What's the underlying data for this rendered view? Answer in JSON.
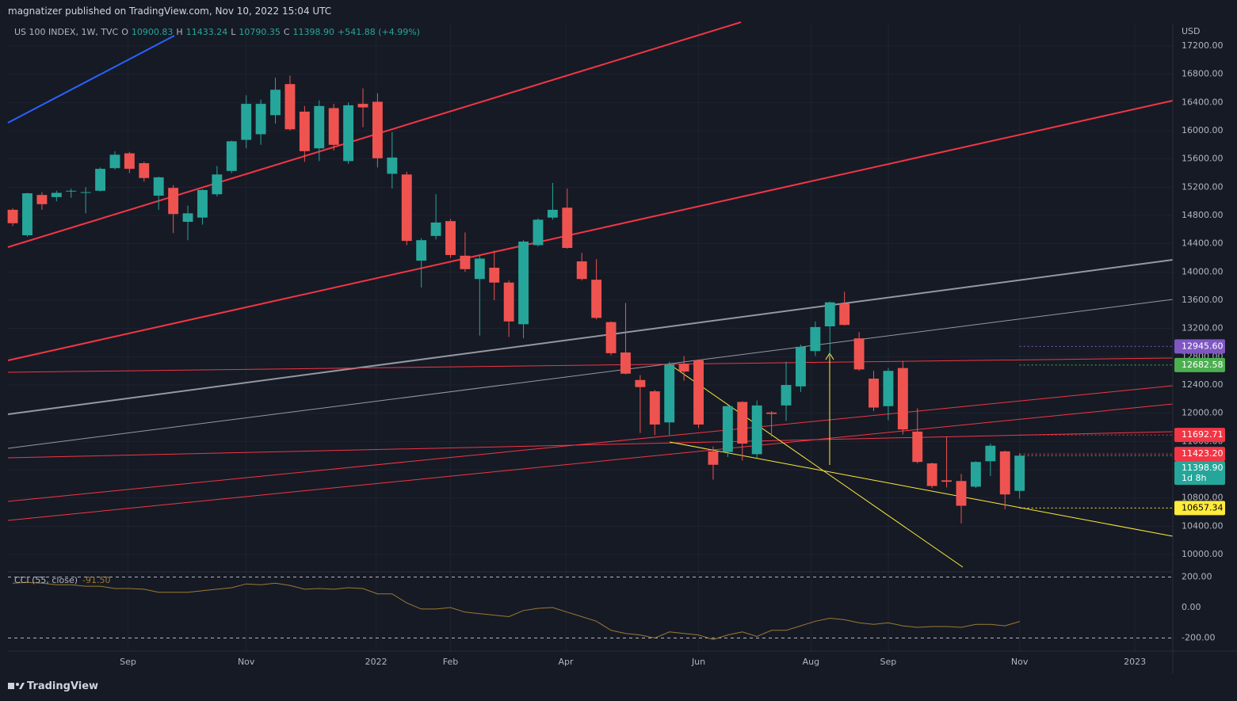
{
  "header": {
    "publisher": "magnatizer published on TradingView.com, Nov 10, 2022 15:04 UTC"
  },
  "footer": {
    "brand": "TradingView"
  },
  "chart_data": [
    {
      "type": "candlestick",
      "title": "US 100 INDEX, 1W, TVC",
      "currency": "USD",
      "legend_items": [
        {
          "label": "O",
          "value": "10900.83"
        },
        {
          "label": "H",
          "value": "11433.24"
        },
        {
          "label": "L",
          "value": "10790.35"
        },
        {
          "label": "C",
          "value": "11398.90"
        }
      ],
      "change": "+541.88 (+4.99%)",
      "up_color": "#26a69a",
      "down_color": "#ef5350",
      "open": [
        14880,
        14520,
        15090,
        15060,
        15140,
        15120,
        15150,
        15470,
        15680,
        15540,
        15080,
        15190,
        14710,
        14770,
        15100,
        15430,
        15870,
        15950,
        16220,
        16660,
        16270,
        15750,
        16320,
        15570,
        16380,
        16410,
        15390,
        15380,
        14160,
        14510,
        14720,
        14230,
        13900,
        14060,
        13850,
        13260,
        14380,
        14770,
        14910,
        14150,
        13890,
        13290,
        12860,
        12470,
        12310,
        11870,
        12700,
        12750,
        11460,
        11450,
        12160,
        11420,
        12010,
        12110,
        12380,
        12880,
        13230,
        13550,
        13060,
        12490,
        12100,
        12640,
        11740,
        11290,
        11050,
        11040,
        10960,
        11320,
        11460,
        10900.83
      ],
      "high": [
        14900,
        15120,
        15130,
        15150,
        15180,
        15200,
        15480,
        15710,
        15700,
        15560,
        15350,
        15230,
        14940,
        15170,
        15500,
        15860,
        16500,
        16440,
        16750,
        16780,
        16350,
        16430,
        16380,
        16400,
        16600,
        16530,
        15980,
        15420,
        14480,
        15100,
        14750,
        14560,
        14230,
        14300,
        13880,
        14450,
        14760,
        15260,
        15180,
        14270,
        14180,
        13300,
        13560,
        12540,
        12330,
        12730,
        12810,
        12760,
        11530,
        12110,
        12170,
        12180,
        12030,
        12730,
        12970,
        13300,
        13580,
        13720,
        13150,
        12600,
        12640,
        12740,
        12070,
        11300,
        11670,
        11140,
        11320,
        11570,
        11470,
        11433.24
      ],
      "low": [
        14650,
        14500,
        14880,
        15000,
        15050,
        14830,
        15140,
        15450,
        15400,
        15280,
        14880,
        14550,
        14450,
        14670,
        15070,
        15400,
        15750,
        15800,
        16100,
        16000,
        15560,
        15570,
        15720,
        15530,
        16050,
        15480,
        15180,
        14380,
        13780,
        14460,
        14200,
        14000,
        13100,
        13600,
        13080,
        13060,
        14360,
        14740,
        14330,
        13880,
        13330,
        12820,
        12550,
        11720,
        11690,
        11690,
        12460,
        11790,
        11060,
        11380,
        11330,
        11370,
        11670,
        11890,
        12300,
        12810,
        12810,
        13240,
        12600,
        12030,
        11900,
        11700,
        11290,
        10940,
        10950,
        10440,
        10940,
        11110,
        10640,
        10790.35
      ],
      "close": [
        14690,
        15114,
        14960,
        15120,
        15150,
        15130,
        15460,
        15660,
        15460,
        15330,
        15340,
        14820,
        14830,
        15160,
        15380,
        15850,
        16380,
        16380,
        16580,
        16020,
        15710,
        16350,
        15800,
        16360,
        16330,
        15610,
        15620,
        14440,
        14450,
        14700,
        14240,
        14040,
        14190,
        13850,
        13300,
        14430,
        14740,
        14880,
        14340,
        13900,
        13350,
        12850,
        12560,
        12370,
        11840,
        12690,
        12590,
        11840,
        11270,
        12100,
        11570,
        12110,
        11990,
        12400,
        12940,
        13220,
        13570,
        13250,
        12620,
        12080,
        12600,
        11770,
        11310,
        10970,
        11030,
        10690,
        11310,
        11540,
        10850,
        11398.9
      ],
      "xlim": [
        -0.33,
        79.5
      ],
      "xticks": [
        {
          "value": 7.9,
          "label": "Sep"
        },
        {
          "value": 16,
          "label": "Nov"
        },
        {
          "value": 24.9,
          "label": "2022"
        },
        {
          "value": 30,
          "label": "Feb"
        },
        {
          "value": 37.9,
          "label": "Apr"
        },
        {
          "value": 47,
          "label": "Jun"
        },
        {
          "value": 54.7,
          "label": "Aug"
        },
        {
          "value": 60,
          "label": "Sep"
        },
        {
          "value": 69,
          "label": "Nov"
        },
        {
          "value": 76.9,
          "label": "2023"
        }
      ],
      "ylim": [
        9776,
        17514
      ],
      "yticks": [
        {
          "value": 10000,
          "label": "10000.00"
        },
        {
          "value": 10400,
          "label": "10400.00"
        },
        {
          "value": 10800,
          "label": "10800.00"
        },
        {
          "value": 11200,
          "label": "11200.00"
        },
        {
          "value": 11600,
          "label": "11600.00"
        },
        {
          "value": 12000,
          "label": "12000.00"
        },
        {
          "value": 12400,
          "label": "12400.00"
        },
        {
          "value": 12800,
          "label": "12800.00"
        },
        {
          "value": 13200,
          "label": "13200.00"
        },
        {
          "value": 13600,
          "label": "13600.00"
        },
        {
          "value": 14000,
          "label": "14000.00"
        },
        {
          "value": 14400,
          "label": "14400.00"
        },
        {
          "value": 14800,
          "label": "14800.00"
        },
        {
          "value": 15200,
          "label": "15200.00"
        },
        {
          "value": 15600,
          "label": "15600.00"
        },
        {
          "value": 16000,
          "label": "16000.00"
        },
        {
          "value": 16400,
          "label": "16400.00"
        },
        {
          "value": 16800,
          "label": "16800.00"
        },
        {
          "value": 17200,
          "label": "17200.00"
        }
      ],
      "grid": true,
      "price_labels": [
        {
          "value": 12945.6,
          "label": "12945.60",
          "color": "#7e57c2",
          "text_color": "#ffffff"
        },
        {
          "value": 12682.58,
          "label": "12682.58",
          "color": "#4caf50",
          "text_color": "#ffffff"
        },
        {
          "value": 11692.71,
          "label": "11692.71",
          "color": "#f23645",
          "text_color": "#ffffff"
        },
        {
          "value": 11423.2,
          "label": "11423.20",
          "color": "#f23645",
          "text_color": "#ffffff"
        },
        {
          "value": 11398.9,
          "label": "11398.90",
          "sublabel": "1d 8h",
          "color": "#26a69a",
          "text_color": "#ffffff"
        },
        {
          "value": 10657.34,
          "label": "10657.34",
          "color": "#ffeb3b",
          "text_color": "#000000"
        }
      ]
    },
    {
      "type": "line",
      "title": "CCI (55, close)",
      "value_text": "-91.50",
      "color": "#9c7a32",
      "values": [
        160,
        165,
        160,
        150,
        150,
        140,
        140,
        125,
        125,
        120,
        100,
        100,
        100,
        110,
        120,
        130,
        155,
        150,
        160,
        145,
        120,
        125,
        120,
        130,
        125,
        90,
        90,
        30,
        -10,
        -10,
        0,
        -30,
        -40,
        -50,
        -60,
        -20,
        -5,
        0,
        -30,
        -60,
        -90,
        -150,
        -170,
        -180,
        -200,
        -160,
        -170,
        -180,
        -210,
        -180,
        -160,
        -190,
        -150,
        -150,
        -120,
        -90,
        -70,
        -80,
        -100,
        -110,
        -100,
        -120,
        -130,
        -125,
        -125,
        -130,
        -110,
        -110,
        -120,
        -91.5
      ],
      "ylim": [
        -286,
        234
      ],
      "yticks": [
        {
          "value": 200,
          "label": "200.00"
        },
        {
          "value": 0,
          "label": "0.00"
        },
        {
          "value": -200,
          "label": "-200.00"
        }
      ]
    }
  ]
}
